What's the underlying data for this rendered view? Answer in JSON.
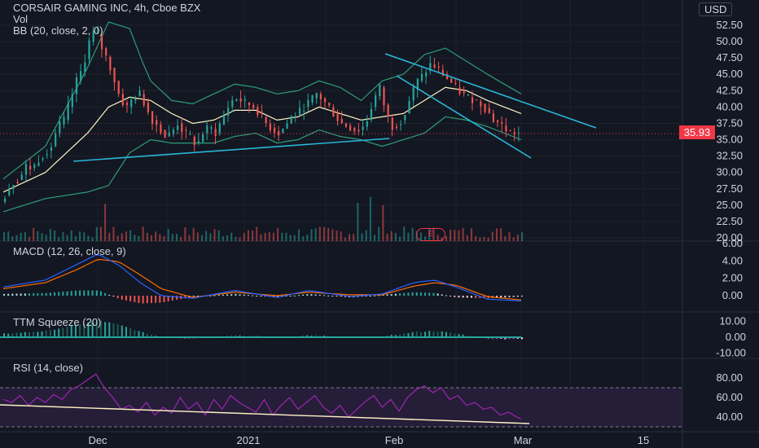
{
  "header": {
    "title": "CORSAIR GAMING INC, 4h, Cboe BZX",
    "vol": "Vol",
    "bb": "BB (20, close, 2, 0)",
    "currency": "USD"
  },
  "price_badge": "35.93",
  "earnings_badge": "E",
  "panes": {
    "macd": "MACD (12, 26, close, 9)",
    "ttm": "TTM Squeeze (20)",
    "rsi": "RSI (14, close)"
  },
  "colors": {
    "background": "#131722",
    "up": "#26a69a",
    "down": "#ef5350",
    "bb_basis": "#fff3c4",
    "bb_band": "#2e9c7a",
    "trendline": "#29b6d6",
    "rsi": "#9c27b0"
  },
  "chart_data": [
    {
      "type": "candlestick",
      "title": "CORSAIR GAMING INC, 4h, Cboe BZX",
      "x_ticks": [
        "Dec",
        "2021",
        "Feb",
        "Mar",
        "15"
      ],
      "y_ticks": [
        "52.50",
        "50.00",
        "47.50",
        "45.00",
        "42.50",
        "40.00",
        "37.50",
        "35.00",
        "32.50",
        "30.00",
        "27.50",
        "25.00",
        "22.50",
        "20.00"
      ],
      "ylim": [
        20,
        54
      ],
      "last_price": 35.93,
      "close_path": [
        [
          0,
          25.5
        ],
        [
          3,
          27
        ],
        [
          6,
          28.5
        ],
        [
          9,
          29
        ],
        [
          12,
          31
        ],
        [
          15,
          30.5
        ],
        [
          18,
          32
        ],
        [
          21,
          33
        ],
        [
          24,
          34
        ],
        [
          27,
          37
        ],
        [
          30,
          38
        ],
        [
          33,
          41
        ],
        [
          36,
          44
        ],
        [
          39,
          46
        ],
        [
          42,
          50
        ],
        [
          45,
          52
        ],
        [
          48,
          49
        ],
        [
          51,
          47
        ],
        [
          54,
          44
        ],
        [
          57,
          41
        ],
        [
          60,
          40
        ],
        [
          63,
          41.5
        ],
        [
          66,
          42
        ],
        [
          69,
          40
        ],
        [
          72,
          38
        ],
        [
          75,
          37
        ],
        [
          78,
          35.5
        ],
        [
          81,
          36
        ],
        [
          84,
          37.5
        ],
        [
          87,
          36
        ],
        [
          90,
          35.5
        ],
        [
          93,
          34
        ],
        [
          96,
          36
        ],
        [
          99,
          37
        ],
        [
          102,
          36
        ],
        [
          105,
          38
        ],
        [
          108,
          40
        ],
        [
          111,
          41.5
        ],
        [
          114,
          41
        ],
        [
          117,
          40.5
        ],
        [
          120,
          40
        ],
        [
          123,
          39
        ],
        [
          126,
          37.5
        ],
        [
          129,
          36.5
        ],
        [
          132,
          36
        ],
        [
          135,
          37
        ],
        [
          138,
          38.5
        ],
        [
          141,
          39
        ],
        [
          144,
          40
        ],
        [
          147,
          41
        ],
        [
          150,
          42
        ],
        [
          153,
          41
        ],
        [
          156,
          40
        ],
        [
          159,
          38.5
        ],
        [
          162,
          37.5
        ],
        [
          165,
          37
        ],
        [
          168,
          36.5
        ],
        [
          171,
          36.5
        ],
        [
          174,
          38
        ],
        [
          177,
          41
        ],
        [
          180,
          43
        ],
        [
          183,
          39
        ],
        [
          186,
          37
        ],
        [
          189,
          37.5
        ],
        [
          192,
          39
        ],
        [
          195,
          42
        ],
        [
          198,
          44
        ],
        [
          201,
          45
        ],
        [
          204,
          46.5
        ],
        [
          207,
          46
        ],
        [
          210,
          45
        ],
        [
          213,
          44
        ],
        [
          216,
          43
        ],
        [
          219,
          42
        ],
        [
          222,
          41.5
        ],
        [
          225,
          41
        ],
        [
          228,
          40.5
        ],
        [
          231,
          39.5
        ],
        [
          234,
          38
        ],
        [
          237,
          37.5
        ],
        [
          240,
          36.5
        ],
        [
          243,
          36
        ],
        [
          246,
          35.93
        ]
      ],
      "bb_basis": [
        [
          0,
          27
        ],
        [
          20,
          30
        ],
        [
          40,
          36
        ],
        [
          50,
          40
        ],
        [
          60,
          41.5
        ],
        [
          70,
          41
        ],
        [
          80,
          39
        ],
        [
          90,
          37.5
        ],
        [
          100,
          38
        ],
        [
          110,
          39.5
        ],
        [
          120,
          39.5
        ],
        [
          130,
          38
        ],
        [
          140,
          38.5
        ],
        [
          150,
          40
        ],
        [
          160,
          39
        ],
        [
          170,
          38
        ],
        [
          180,
          38.5
        ],
        [
          190,
          39
        ],
        [
          200,
          41
        ],
        [
          210,
          43
        ],
        [
          220,
          42.5
        ],
        [
          230,
          41
        ],
        [
          246,
          39
        ]
      ],
      "bb_upper": [
        [
          0,
          29
        ],
        [
          20,
          34
        ],
        [
          40,
          46
        ],
        [
          50,
          53
        ],
        [
          60,
          52
        ],
        [
          66,
          47
        ],
        [
          70,
          44
        ],
        [
          80,
          41
        ],
        [
          90,
          40.5
        ],
        [
          100,
          42
        ],
        [
          110,
          43.5
        ],
        [
          120,
          43
        ],
        [
          130,
          42
        ],
        [
          140,
          42.5
        ],
        [
          150,
          44
        ],
        [
          160,
          43
        ],
        [
          170,
          41
        ],
        [
          180,
          44
        ],
        [
          190,
          45
        ],
        [
          200,
          48
        ],
        [
          210,
          49
        ],
        [
          220,
          47
        ],
        [
          230,
          45
        ],
        [
          246,
          42
        ]
      ],
      "bb_lower": [
        [
          0,
          24
        ],
        [
          20,
          26
        ],
        [
          40,
          27
        ],
        [
          50,
          28
        ],
        [
          60,
          33
        ],
        [
          70,
          35
        ],
        [
          80,
          34.5
        ],
        [
          90,
          34.5
        ],
        [
          100,
          34.5
        ],
        [
          110,
          35.5
        ],
        [
          120,
          36
        ],
        [
          130,
          34.5
        ],
        [
          140,
          35
        ],
        [
          150,
          36.5
        ],
        [
          160,
          35.5
        ],
        [
          170,
          35
        ],
        [
          180,
          34
        ],
        [
          190,
          35
        ],
        [
          200,
          36
        ],
        [
          210,
          38.5
        ],
        [
          220,
          38
        ],
        [
          230,
          37
        ],
        [
          246,
          35
        ]
      ]
    },
    {
      "type": "bar",
      "name": "MACD",
      "title": "MACD (12, 26, close, 9)",
      "y_ticks": [
        "6.00",
        "4.00",
        "2.00",
        "0.00"
      ],
      "ylim": [
        -1.5,
        6.5
      ],
      "macd_line": [
        [
          0,
          1
        ],
        [
          20,
          1.8
        ],
        [
          35,
          3.6
        ],
        [
          45,
          4.8
        ],
        [
          55,
          3.5
        ],
        [
          65,
          1.5
        ],
        [
          75,
          0
        ],
        [
          90,
          -0.3
        ],
        [
          110,
          0.6
        ],
        [
          130,
          -0.2
        ],
        [
          145,
          0.6
        ],
        [
          165,
          -0.1
        ],
        [
          180,
          0.2
        ],
        [
          195,
          1.5
        ],
        [
          205,
          1.8
        ],
        [
          215,
          1
        ],
        [
          230,
          -0.4
        ],
        [
          246,
          -0.6
        ]
      ],
      "signal_line": [
        [
          0,
          0.8
        ],
        [
          20,
          1.5
        ],
        [
          35,
          3
        ],
        [
          45,
          4.2
        ],
        [
          55,
          3.9
        ],
        [
          65,
          2.4
        ],
        [
          75,
          0.8
        ],
        [
          90,
          -0.2
        ],
        [
          110,
          0.4
        ],
        [
          130,
          0
        ],
        [
          145,
          0.4
        ],
        [
          165,
          0.1
        ],
        [
          180,
          0.1
        ],
        [
          195,
          1.1
        ],
        [
          205,
          1.5
        ],
        [
          215,
          1.2
        ],
        [
          230,
          -0.1
        ],
        [
          246,
          -0.5
        ]
      ]
    },
    {
      "type": "bar",
      "name": "TTM Squeeze",
      "title": "TTM Squeeze (20)",
      "y_ticks": [
        "10.00",
        "0.00",
        "-10.00"
      ],
      "ylim": [
        -12,
        12
      ]
    },
    {
      "type": "line",
      "name": "RSI",
      "title": "RSI (14, close)",
      "y_ticks": [
        "80.00",
        "60.00",
        "40.00"
      ],
      "ylim": [
        25,
        90
      ],
      "upper_band": 70,
      "lower_band": 30,
      "values": [
        [
          0,
          58
        ],
        [
          4,
          55
        ],
        [
          8,
          62
        ],
        [
          12,
          52
        ],
        [
          16,
          60
        ],
        [
          20,
          55
        ],
        [
          24,
          63
        ],
        [
          28,
          58
        ],
        [
          32,
          68
        ],
        [
          36,
          72
        ],
        [
          40,
          78
        ],
        [
          44,
          84
        ],
        [
          48,
          70
        ],
        [
          52,
          60
        ],
        [
          56,
          48
        ],
        [
          60,
          52
        ],
        [
          64,
          45
        ],
        [
          68,
          55
        ],
        [
          72,
          42
        ],
        [
          76,
          50
        ],
        [
          80,
          44
        ],
        [
          84,
          60
        ],
        [
          88,
          48
        ],
        [
          92,
          55
        ],
        [
          96,
          42
        ],
        [
          100,
          58
        ],
        [
          104,
          48
        ],
        [
          108,
          62
        ],
        [
          112,
          55
        ],
        [
          116,
          50
        ],
        [
          120,
          45
        ],
        [
          124,
          58
        ],
        [
          128,
          42
        ],
        [
          132,
          52
        ],
        [
          136,
          60
        ],
        [
          140,
          48
        ],
        [
          144,
          55
        ],
        [
          148,
          62
        ],
        [
          152,
          50
        ],
        [
          156,
          44
        ],
        [
          160,
          52
        ],
        [
          164,
          40
        ],
        [
          168,
          48
        ],
        [
          172,
          56
        ],
        [
          176,
          62
        ],
        [
          180,
          50
        ],
        [
          184,
          58
        ],
        [
          188,
          46
        ],
        [
          192,
          60
        ],
        [
          196,
          68
        ],
        [
          200,
          72
        ],
        [
          204,
          65
        ],
        [
          208,
          70
        ],
        [
          212,
          58
        ],
        [
          216,
          62
        ],
        [
          220,
          52
        ],
        [
          224,
          55
        ],
        [
          228,
          48
        ],
        [
          232,
          50
        ],
        [
          236,
          42
        ],
        [
          240,
          45
        ],
        [
          244,
          40
        ],
        [
          246,
          38
        ]
      ]
    }
  ]
}
